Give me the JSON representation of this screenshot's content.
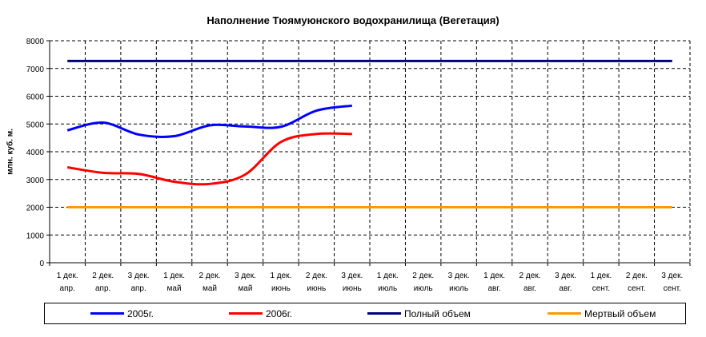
{
  "chart_data": {
    "type": "line",
    "title": "Наполнение Тюямуюнского водохранилища (Вегетация)",
    "ylabel": "млн. куб. м.",
    "xlabel": "",
    "ylim": [
      0,
      8000
    ],
    "yticks": [
      0,
      1000,
      2000,
      3000,
      4000,
      5000,
      6000,
      7000,
      8000
    ],
    "grid": true,
    "legend_position": "bottom",
    "categories": [
      [
        "1 дек.",
        "апр."
      ],
      [
        "2 дек.",
        "апр."
      ],
      [
        "3 дек.",
        "апр."
      ],
      [
        "1 дек.",
        "май"
      ],
      [
        "2 дек.",
        "май"
      ],
      [
        "3 дек.",
        "май"
      ],
      [
        "1 дек.",
        "июнь"
      ],
      [
        "2 дек.",
        "июнь"
      ],
      [
        "3 дек.",
        "июнь"
      ],
      [
        "1 дек.",
        "июль"
      ],
      [
        "2 дек.",
        "июль"
      ],
      [
        "3 дек.",
        "июль"
      ],
      [
        "1 дек.",
        "авг."
      ],
      [
        "2 дек.",
        "авг."
      ],
      [
        "3 дек.",
        "авг."
      ],
      [
        "1 дек.",
        "сент."
      ],
      [
        "2 дек.",
        "сент."
      ],
      [
        "3 дек.",
        "сент."
      ]
    ],
    "series": [
      {
        "name": "2005г.",
        "color": "#0000ff",
        "values": [
          4770,
          5050,
          4620,
          4560,
          4950,
          4910,
          4900,
          5480,
          5660,
          null,
          null,
          null,
          null,
          null,
          null,
          null,
          null,
          null
        ]
      },
      {
        "name": "2006г.",
        "color": "#ff0000",
        "values": [
          3440,
          3240,
          3200,
          2920,
          2840,
          3180,
          4350,
          4640,
          4640,
          null,
          null,
          null,
          null,
          null,
          null,
          null,
          null,
          null
        ]
      },
      {
        "name": "Полный объем",
        "color": "#000080",
        "values": [
          7270,
          7270,
          7270,
          7270,
          7270,
          7270,
          7270,
          7270,
          7270,
          7270,
          7270,
          7270,
          7270,
          7270,
          7270,
          7270,
          7270,
          7270
        ]
      },
      {
        "name": "Мертвый объем",
        "color": "#ff9900",
        "values": [
          2000,
          2000,
          2000,
          2000,
          2000,
          2000,
          2000,
          2000,
          2000,
          2000,
          2000,
          2000,
          2000,
          2000,
          2000,
          2000,
          2000,
          2000
        ]
      }
    ]
  }
}
